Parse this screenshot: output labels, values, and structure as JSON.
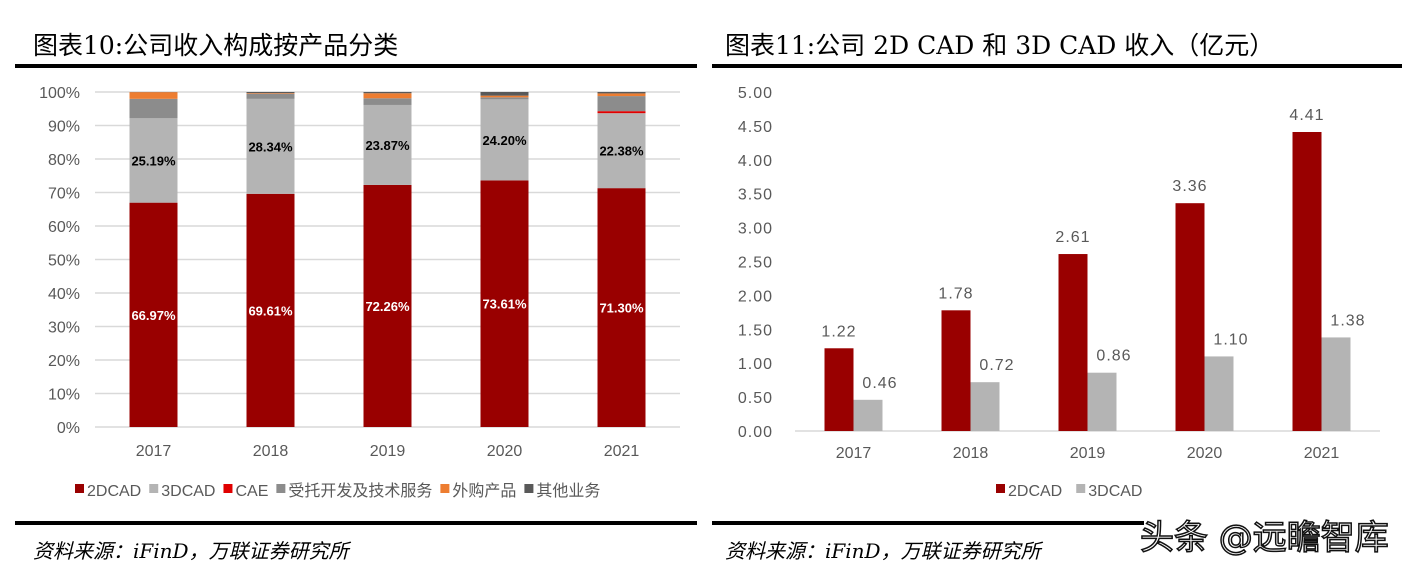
{
  "left": {
    "title": "图表10:公司收入构成按产品分类",
    "source": "资料来源：iFinD，万联证券研究所",
    "chart_data": {
      "type": "bar",
      "stacked": true,
      "percent": true,
      "categories": [
        "2017",
        "2018",
        "2019",
        "2020",
        "2021"
      ],
      "ylim": [
        0,
        100
      ],
      "yticks": [
        "0%",
        "10%",
        "20%",
        "30%",
        "40%",
        "50%",
        "60%",
        "70%",
        "80%",
        "90%",
        "100%"
      ],
      "grid": true,
      "legend": "bottom",
      "series": [
        {
          "name": "2DCAD",
          "color": "#990000",
          "values": [
            66.97,
            69.61,
            72.26,
            73.61,
            71.3
          ],
          "labels": [
            "66.97%",
            "69.61%",
            "72.26%",
            "73.61%",
            "71.30%"
          ]
        },
        {
          "name": "3DCAD",
          "color": "#b4b4b4",
          "values": [
            25.19,
            28.34,
            23.87,
            24.2,
            22.38
          ],
          "labels": [
            "25.19%",
            "28.34%",
            "23.87%",
            "24.20%",
            "22.38%"
          ]
        },
        {
          "name": "CAE",
          "color": "#e00000",
          "values": [
            0,
            0,
            0,
            0,
            0.6
          ]
        },
        {
          "name": "受托开发及技术服务",
          "color": "#8c8c8c",
          "values": [
            5.8,
            1.5,
            2.0,
            0.6,
            4.5
          ]
        },
        {
          "name": "外购产品",
          "color": "#ed7d31",
          "values": [
            2.0,
            0.2,
            1.5,
            0.5,
            0.8
          ]
        },
        {
          "name": "其他业务",
          "color": "#595959",
          "values": [
            0.04,
            0.35,
            0.37,
            1.09,
            0.42
          ]
        }
      ]
    }
  },
  "right": {
    "title": "图表11:公司 2D CAD 和 3D CAD 收入（亿元）",
    "source": "资料来源：iFinD，万联证券研究所",
    "chart_data": {
      "type": "bar",
      "categories": [
        "2017",
        "2018",
        "2019",
        "2020",
        "2021"
      ],
      "ylim": [
        0,
        5
      ],
      "yticks": [
        "0.00",
        "0.50",
        "1.00",
        "1.50",
        "2.00",
        "2.50",
        "3.00",
        "3.50",
        "4.00",
        "4.50",
        "5.00"
      ],
      "grid": false,
      "legend": "bottom",
      "series": [
        {
          "name": "2DCAD",
          "color": "#990000",
          "values": [
            1.22,
            1.78,
            2.61,
            3.36,
            4.41
          ],
          "labels": [
            "1.22",
            "1.78",
            "2.61",
            "3.36",
            "4.41"
          ]
        },
        {
          "name": "3DCAD",
          "color": "#b4b4b4",
          "values": [
            0.46,
            0.72,
            0.86,
            1.1,
            1.38
          ],
          "labels": [
            "0.46",
            "0.72",
            "0.86",
            "1.10",
            "1.38"
          ]
        }
      ]
    }
  },
  "watermark": "头条 @远瞻智库"
}
